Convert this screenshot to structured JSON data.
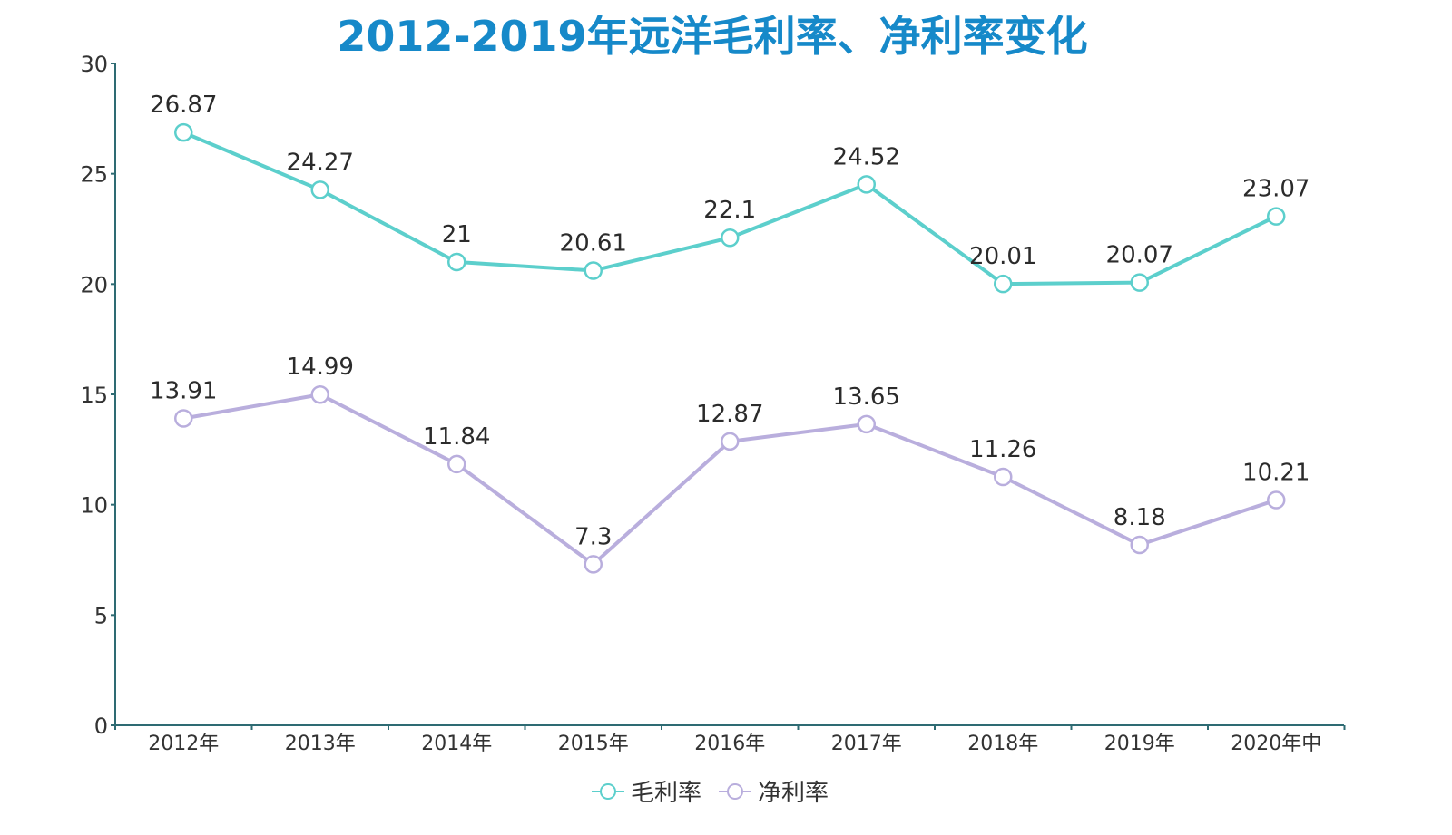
{
  "chart_data": {
    "type": "line",
    "title": "2012-2019年远洋毛利率、净利率变化",
    "xlabel": "",
    "ylabel": "",
    "categories": [
      "2012年",
      "2013年",
      "2014年",
      "2015年",
      "2016年",
      "2017年",
      "2018年",
      "2019年",
      "2020年中"
    ],
    "ylim": [
      0,
      30
    ],
    "yticks": [
      0,
      5,
      10,
      15,
      20,
      25,
      30
    ],
    "grid": false,
    "legend_position": "bottom-center",
    "series": [
      {
        "name": "毛利率",
        "color": "#5ccfcc",
        "values": [
          26.87,
          24.27,
          21,
          20.61,
          22.1,
          24.52,
          20.01,
          20.07,
          23.07
        ],
        "labels": [
          "26.87",
          "24.27",
          "21",
          "20.61",
          "22.1",
          "24.52",
          "20.01",
          "20.07",
          "23.07"
        ]
      },
      {
        "name": "净利率",
        "color": "#b9aedd",
        "values": [
          13.91,
          14.99,
          11.84,
          7.3,
          12.87,
          13.65,
          11.26,
          8.18,
          10.21
        ],
        "labels": [
          "13.91",
          "14.99",
          "11.84",
          "7.3",
          "12.87",
          "13.65",
          "11.26",
          "8.18",
          "10.21"
        ]
      }
    ],
    "axis_color": "#2e6b73",
    "title_color": "#1689c9"
  }
}
